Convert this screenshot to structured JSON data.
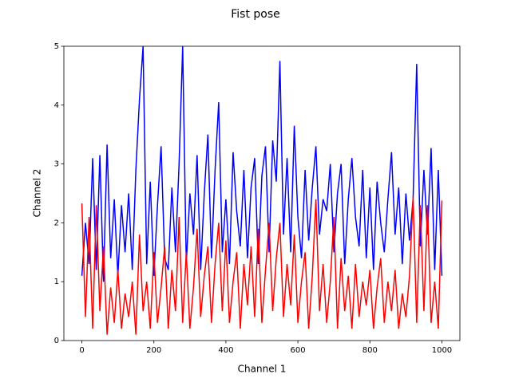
{
  "chart_data": {
    "type": "line",
    "title": "Fist pose",
    "x_label": "Channel 1",
    "y_label": "Channel 2",
    "x": [
      0,
      10,
      20,
      30,
      40,
      50,
      60,
      70,
      80,
      90,
      100,
      110,
      120,
      130,
      140,
      150,
      160,
      170,
      180,
      190,
      200,
      210,
      220,
      230,
      240,
      250,
      260,
      270,
      280,
      290,
      300,
      310,
      320,
      330,
      340,
      350,
      360,
      370,
      380,
      390,
      400,
      410,
      420,
      430,
      440,
      450,
      460,
      470,
      480,
      490,
      500,
      510,
      520,
      530,
      540,
      550,
      560,
      570,
      580,
      590,
      600,
      610,
      620,
      630,
      640,
      650,
      660,
      670,
      680,
      690,
      700,
      710,
      720,
      730,
      740,
      750,
      760,
      770,
      780,
      790,
      800,
      810,
      820,
      830,
      840,
      850,
      860,
      870,
      880,
      890,
      900,
      910,
      920,
      930,
      940,
      950,
      960,
      970,
      980,
      990,
      1000
    ],
    "series": [
      {
        "color": "#0000ff",
        "values": [
          1.1,
          2.0,
          1.3,
          3.1,
          1.2,
          3.15,
          1.0,
          3.33,
          1.4,
          2.4,
          1.1,
          2.3,
          1.5,
          2.5,
          1.2,
          2.9,
          4.1,
          5.0,
          1.3,
          2.7,
          1.1,
          2.3,
          3.3,
          1.4,
          1.2,
          2.6,
          1.5,
          3.0,
          5.0,
          1.3,
          2.5,
          1.8,
          3.15,
          1.2,
          2.5,
          3.5,
          1.4,
          2.9,
          4.05,
          1.5,
          2.4,
          1.3,
          3.2,
          2.2,
          1.6,
          2.9,
          1.4,
          2.6,
          3.1,
          1.3,
          2.8,
          3.3,
          1.5,
          3.4,
          2.7,
          4.75,
          1.8,
          3.1,
          1.5,
          3.65,
          2.1,
          1.4,
          2.9,
          1.7,
          2.6,
          3.3,
          1.8,
          2.4,
          2.2,
          3.0,
          1.5,
          2.5,
          3.0,
          1.3,
          2.4,
          3.1,
          2.1,
          1.6,
          2.9,
          1.4,
          2.6,
          1.2,
          2.7,
          2.0,
          1.5,
          2.4,
          3.2,
          1.8,
          2.6,
          1.3,
          2.5,
          1.7,
          2.4,
          4.7,
          1.6,
          2.9,
          1.8,
          3.27,
          1.2,
          2.9,
          1.1
        ]
      },
      {
        "color": "#ff0000",
        "values": [
          2.33,
          0.4,
          2.1,
          0.2,
          2.3,
          0.5,
          1.6,
          0.1,
          0.9,
          0.3,
          1.2,
          0.2,
          0.8,
          0.4,
          1.0,
          0.1,
          1.8,
          0.5,
          1.0,
          0.2,
          1.5,
          0.3,
          0.9,
          1.6,
          0.2,
          1.2,
          0.5,
          2.1,
          0.3,
          1.5,
          0.2,
          0.9,
          1.9,
          0.4,
          1.1,
          1.6,
          0.3,
          1.3,
          2.0,
          0.5,
          1.7,
          0.3,
          1.0,
          1.5,
          0.2,
          1.3,
          0.6,
          1.6,
          0.4,
          1.9,
          0.3,
          1.2,
          2.0,
          0.5,
          1.4,
          2.0,
          0.4,
          1.3,
          0.6,
          1.8,
          0.3,
          1.0,
          1.5,
          0.2,
          1.1,
          2.4,
          0.5,
          1.3,
          0.3,
          1.0,
          2.1,
          0.2,
          1.4,
          0.5,
          1.1,
          0.2,
          1.3,
          0.4,
          1.0,
          0.6,
          1.2,
          0.2,
          0.9,
          1.4,
          0.3,
          1.0,
          0.5,
          1.2,
          0.2,
          0.8,
          0.4,
          1.1,
          2.44,
          0.3,
          2.3,
          0.5,
          2.3,
          0.3,
          1.0,
          0.2,
          2.38
        ]
      }
    ],
    "xlim": [
      -50,
      1050
    ],
    "ylim": [
      0,
      5
    ],
    "xticks": [
      0,
      200,
      400,
      600,
      800,
      1000
    ],
    "yticks": [
      0,
      1,
      2,
      3,
      4,
      5
    ]
  }
}
